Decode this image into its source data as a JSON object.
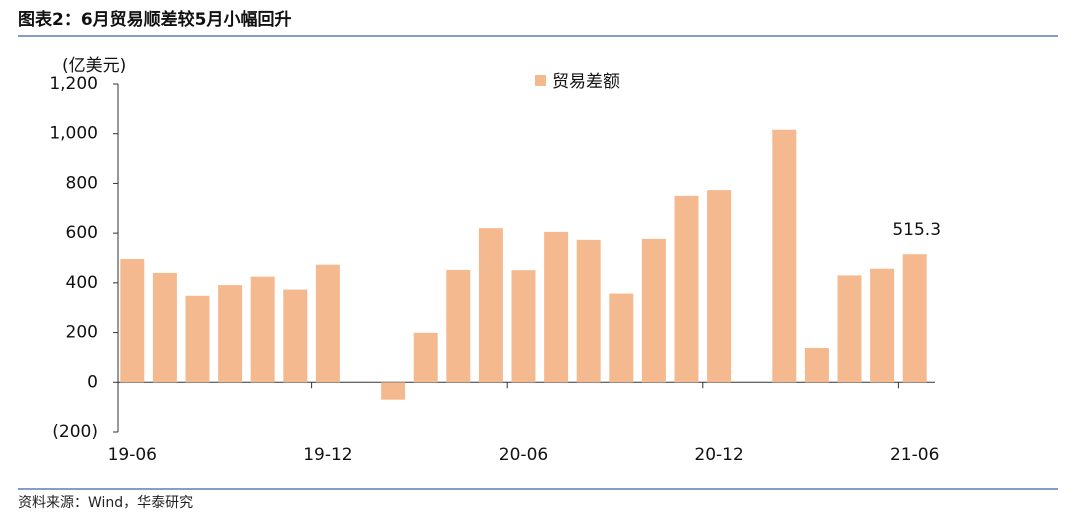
{
  "chart_data": {
    "type": "bar",
    "title": "图表2：6月贸易顺差较5月小幅回升",
    "y_label": "(亿美元)",
    "source": "资料来源：Wind，华泰研究",
    "categories": [
      "19-06",
      null,
      null,
      null,
      null,
      null,
      "19-12",
      null,
      null,
      null,
      null,
      null,
      "20-06",
      null,
      null,
      null,
      null,
      null,
      "20-12",
      null,
      null,
      null,
      null,
      null,
      "21-06"
    ],
    "series": [
      {
        "name": "贸易差额",
        "color": "#f5b98f",
        "values": [
          496,
          440,
          348,
          391,
          425,
          373,
          473,
          null,
          -70,
          199,
          452,
          620,
          451,
          605,
          573,
          357,
          577,
          750,
          773,
          null,
          1016,
          138,
          430,
          457,
          515.3
        ],
        "value_labels": [
          null,
          null,
          null,
          null,
          null,
          null,
          null,
          null,
          null,
          null,
          null,
          null,
          null,
          null,
          null,
          null,
          null,
          null,
          null,
          null,
          null,
          null,
          null,
          null,
          "515.3"
        ]
      }
    ],
    "ylim": [
      -200,
      1200
    ],
    "yticks": [
      {
        "value": -200,
        "label": "(200)"
      },
      0,
      200,
      400,
      600,
      800,
      {
        "value": 1000,
        "label": "1,000"
      },
      {
        "value": 1200,
        "label": "1,200"
      }
    ]
  }
}
